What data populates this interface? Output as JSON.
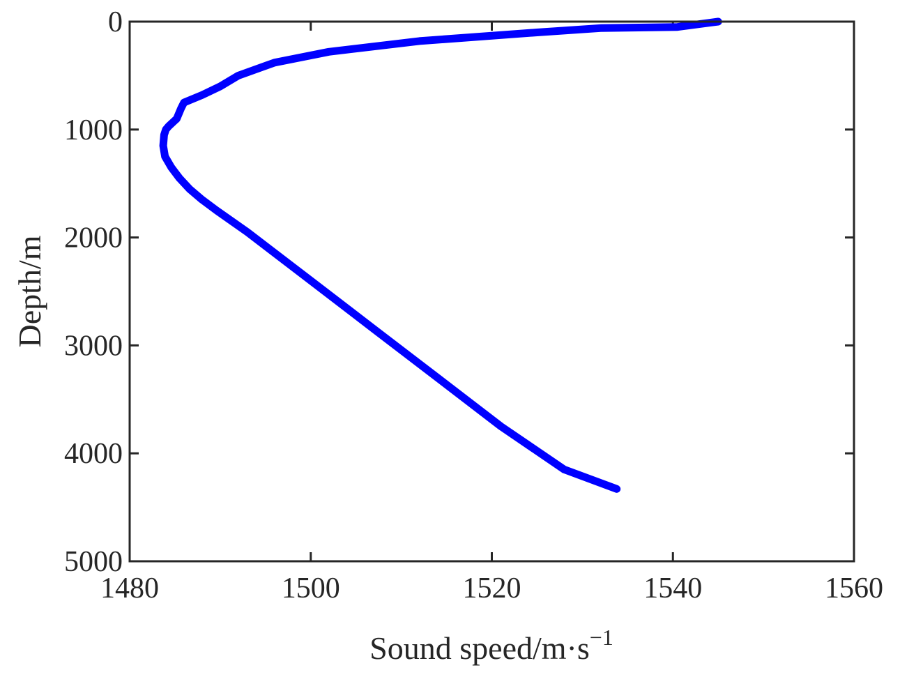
{
  "chart_data": {
    "type": "line",
    "title": "",
    "xlabel": "Sound speed/m·s",
    "xlabel_superscript": "−1",
    "ylabel": "Depth/m",
    "xlim": [
      1480,
      1560
    ],
    "ylim": [
      0,
      5000
    ],
    "y_reversed": true,
    "grid": false,
    "legend": "none",
    "x_ticks": [
      1480,
      1500,
      1520,
      1540,
      1560
    ],
    "y_ticks": [
      0,
      1000,
      2000,
      3000,
      4000,
      5000
    ],
    "x_tick_labels": [
      "1480",
      "1500",
      "1520",
      "1540",
      "1560"
    ],
    "y_tick_labels": [
      "0",
      "1000",
      "2000",
      "3000",
      "4000",
      "5000"
    ],
    "series": [
      {
        "color": "#0000ff",
        "x": [
          1545.0,
          1540.5,
          1532.0,
          1525.0,
          1512.0,
          1502.0,
          1496.0,
          1492.0,
          1490.0,
          1488.0,
          1486.0,
          1485.7,
          1485.2,
          1484.3,
          1484.0,
          1483.8,
          1483.7,
          1483.9,
          1484.6,
          1485.5,
          1486.6,
          1488.0,
          1489.6,
          1493.0,
          1500.0,
          1507.0,
          1514.0,
          1521.0,
          1528.0,
          1533.8
        ],
        "y": [
          0,
          50,
          60,
          100,
          180,
          280,
          380,
          500,
          600,
          680,
          750,
          800,
          900,
          970,
          1000,
          1050,
          1150,
          1250,
          1350,
          1450,
          1550,
          1650,
          1750,
          1950,
          2400,
          2850,
          3300,
          3750,
          4150,
          4330
        ]
      }
    ]
  }
}
